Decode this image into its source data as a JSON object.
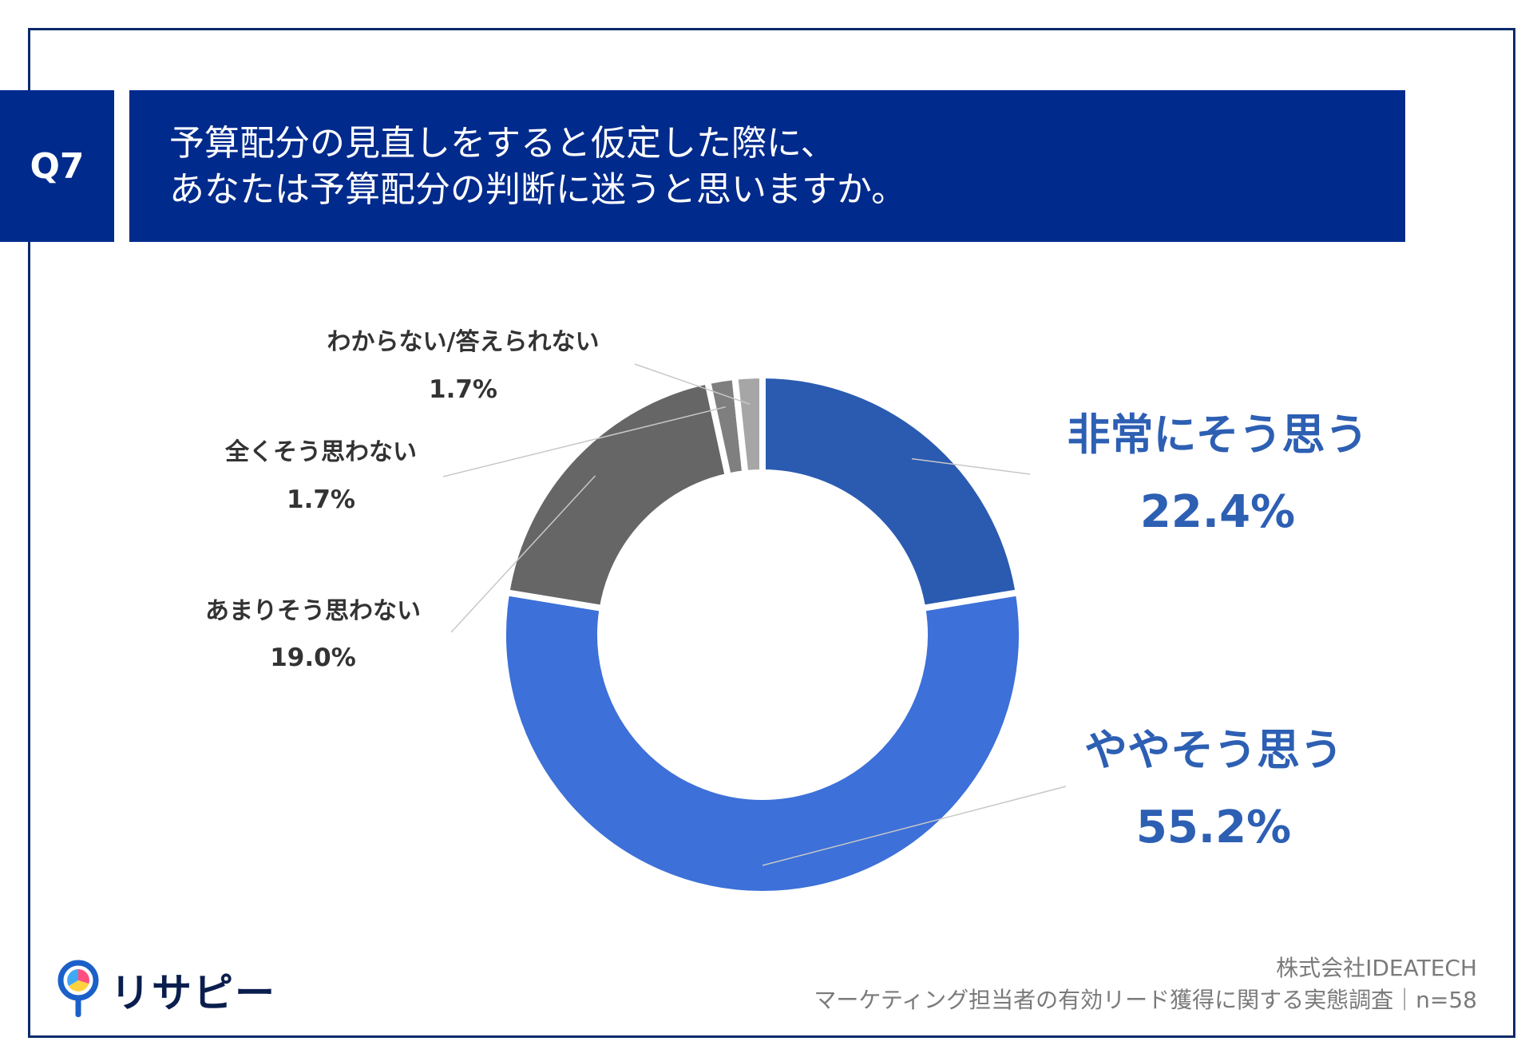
{
  "question": {
    "number": "Q7",
    "line1": "予算配分の見直しをすると仮定した際に、",
    "line2": "あなたは予算配分の判断に迷うと思いますか。"
  },
  "chart_data": {
    "type": "pie",
    "donut": true,
    "title": "予算配分の見直しをすると仮定した際に、あなたは予算配分の判断に迷うと思いますか。",
    "categories": [
      "非常にそう思う",
      "ややそう思う",
      "あまりそう思わない",
      "全くそう思わない",
      "わからない/答えられない"
    ],
    "values": [
      22.4,
      55.2,
      19.0,
      1.7,
      1.7
    ],
    "value_labels": [
      "22.4%",
      "55.2%",
      "19.0%",
      "1.7%",
      "1.7%"
    ],
    "colors": [
      "#2a5bb1",
      "#3d70d8",
      "#666666",
      "#7f7f7f",
      "#a6a6a6"
    ]
  },
  "brand": {
    "logo_text": "リサピー"
  },
  "footer": {
    "company": "株式会社IDEATECH",
    "survey": "マーケティング担当者の有効リード獲得に関する実態調査｜n=58"
  }
}
